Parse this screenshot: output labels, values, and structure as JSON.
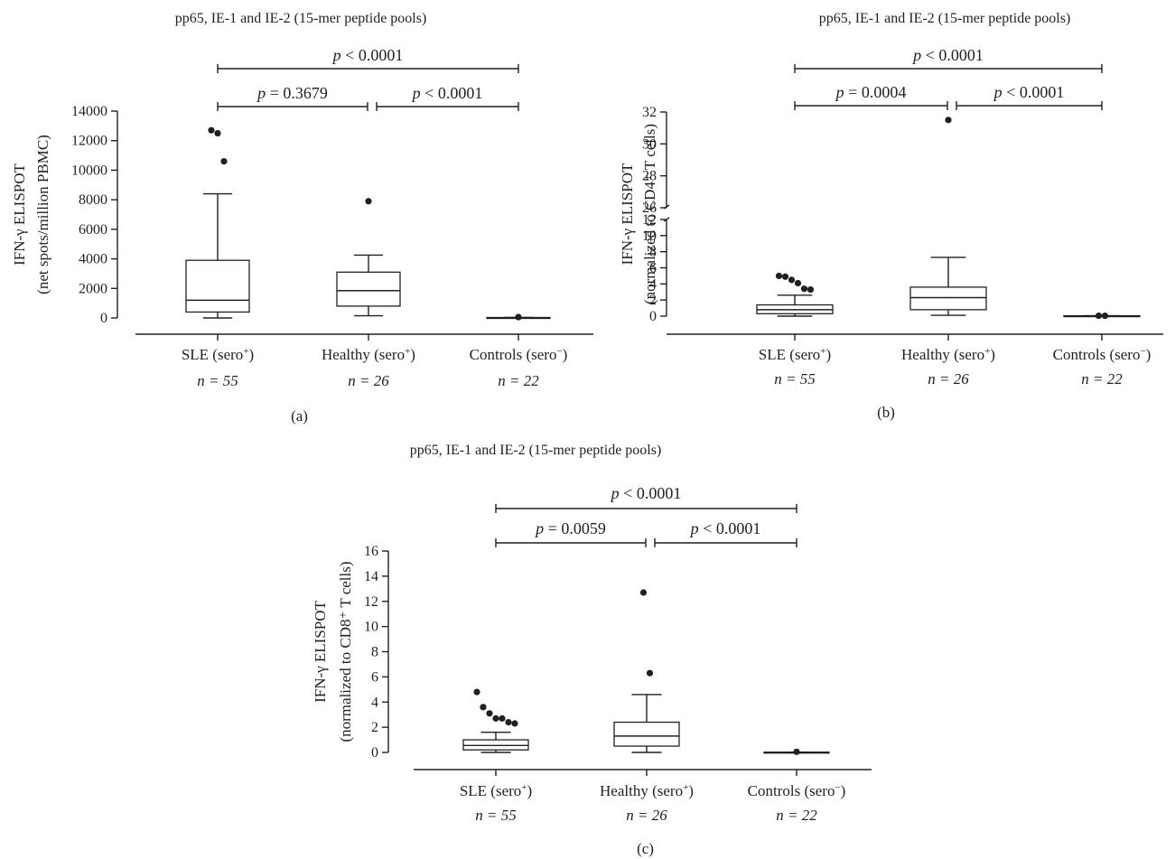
{
  "chart_data": [
    {
      "panel_label": "(a)",
      "type": "box",
      "title": "pp65, IE-1 and IE-2 (15-mer peptide pools)",
      "ylabel_line1": "IFN-γ ELISPOT",
      "ylabel_line2": "(net spots/million PBMC)",
      "ylim": [
        0,
        14000
      ],
      "yticks": [
        0,
        2000,
        4000,
        6000,
        8000,
        10000,
        12000,
        14000
      ],
      "categories": [
        {
          "name": "SLE (sero",
          "sup": "+",
          "n_label": "n = 55"
        },
        {
          "name": "Healthy (sero",
          "sup": "+",
          "n_label": "n = 26"
        },
        {
          "name": "Controls (sero",
          "sup": "−",
          "n_label": "n = 22"
        }
      ],
      "boxes": [
        {
          "whisker_low": 0,
          "q1": 400,
          "median": 1200,
          "q3": 3900,
          "whisker_high": 8400,
          "outliers": [
            12700,
            12500,
            10600
          ]
        },
        {
          "whisker_low": 150,
          "q1": 800,
          "median": 1850,
          "q3": 3100,
          "whisker_high": 4250,
          "outliers": [
            7900
          ]
        },
        {
          "whisker_low": 0,
          "q1": 0,
          "median": 0,
          "q3": 30,
          "whisker_high": 30,
          "outliers": [
            60
          ]
        }
      ],
      "comparisons": [
        {
          "from": 0,
          "to": 2,
          "label": "< 0.0001",
          "level": 2
        },
        {
          "from": 0,
          "to": 1,
          "label": "= 0.3679",
          "level": 1
        },
        {
          "from": 1,
          "to": 2,
          "label": "< 0.0001",
          "level": 1
        }
      ]
    },
    {
      "panel_label": "(b)",
      "type": "box",
      "title": "pp65, IE-1 and IE-2 (15-mer peptide pools)",
      "ylabel_line1": "IFN-γ ELISPOT",
      "ylabel_line2": "(normalized to CD4⁺ T cells)",
      "axis_break": [
        12,
        26
      ],
      "ylim_lower": [
        0,
        12
      ],
      "ylim_upper": [
        26,
        32
      ],
      "yticks_lower": [
        0,
        2,
        4,
        6,
        8,
        10,
        12
      ],
      "yticks_upper": [
        26,
        28,
        30,
        32
      ],
      "categories": [
        {
          "name": "SLE (sero",
          "sup": "+",
          "n_label": "n = 55"
        },
        {
          "name": "Healthy (sero",
          "sup": "+",
          "n_label": "n = 26"
        },
        {
          "name": "Controls (sero",
          "sup": "−",
          "n_label": "n = 22"
        }
      ],
      "boxes": [
        {
          "whisker_low": 0,
          "q1": 0.3,
          "median": 0.8,
          "q3": 1.4,
          "whisker_high": 2.6,
          "outliers": [
            5.0,
            4.9,
            4.5,
            4.1,
            3.4,
            3.3
          ]
        },
        {
          "whisker_low": 0.1,
          "q1": 0.8,
          "median": 2.3,
          "q3": 3.6,
          "whisker_high": 7.3,
          "outliers": [
            31.5
          ]
        },
        {
          "whisker_low": 0,
          "q1": 0,
          "median": 0,
          "q3": 0.05,
          "whisker_high": 0.05,
          "outliers": [
            0.05,
            0.05
          ]
        }
      ],
      "comparisons": [
        {
          "from": 0,
          "to": 2,
          "label": "< 0.0001",
          "level": 2
        },
        {
          "from": 0,
          "to": 1,
          "label": "= 0.0004",
          "level": 1
        },
        {
          "from": 1,
          "to": 2,
          "label": "< 0.0001",
          "level": 1
        }
      ]
    },
    {
      "panel_label": "(c)",
      "type": "box",
      "title": "pp65, IE-1 and IE-2 (15-mer peptide pools)",
      "ylabel_line1": "IFN-γ ELISPOT",
      "ylabel_line2": "(normalized to CD8⁺ T cells)",
      "ylim": [
        0,
        16
      ],
      "yticks": [
        0,
        2,
        4,
        6,
        8,
        10,
        12,
        14,
        16
      ],
      "categories": [
        {
          "name": "SLE (sero",
          "sup": "+",
          "n_label": "n = 55"
        },
        {
          "name": "Healthy (sero",
          "sup": "+",
          "n_label": "n = 26"
        },
        {
          "name": "Controls (sero",
          "sup": "−",
          "n_label": "n = 22"
        }
      ],
      "boxes": [
        {
          "whisker_low": 0,
          "q1": 0.2,
          "median": 0.55,
          "q3": 1.0,
          "whisker_high": 1.6,
          "outliers": [
            4.8,
            3.6,
            3.1,
            2.7,
            2.7,
            2.4,
            2.3
          ]
        },
        {
          "whisker_low": 0,
          "q1": 0.5,
          "median": 1.3,
          "q3": 2.4,
          "whisker_high": 4.6,
          "outliers": [
            12.7,
            6.3
          ]
        },
        {
          "whisker_low": 0,
          "q1": 0,
          "median": 0,
          "q3": 0.02,
          "whisker_high": 0.02,
          "outliers": [
            0.05
          ]
        }
      ],
      "comparisons": [
        {
          "from": 0,
          "to": 2,
          "label": "< 0.0001",
          "level": 2
        },
        {
          "from": 0,
          "to": 1,
          "label": "= 0.0059",
          "level": 1
        },
        {
          "from": 1,
          "to": 2,
          "label": "< 0.0001",
          "level": 1
        }
      ]
    }
  ],
  "p_symbol": "p",
  "n_symbol": "n"
}
